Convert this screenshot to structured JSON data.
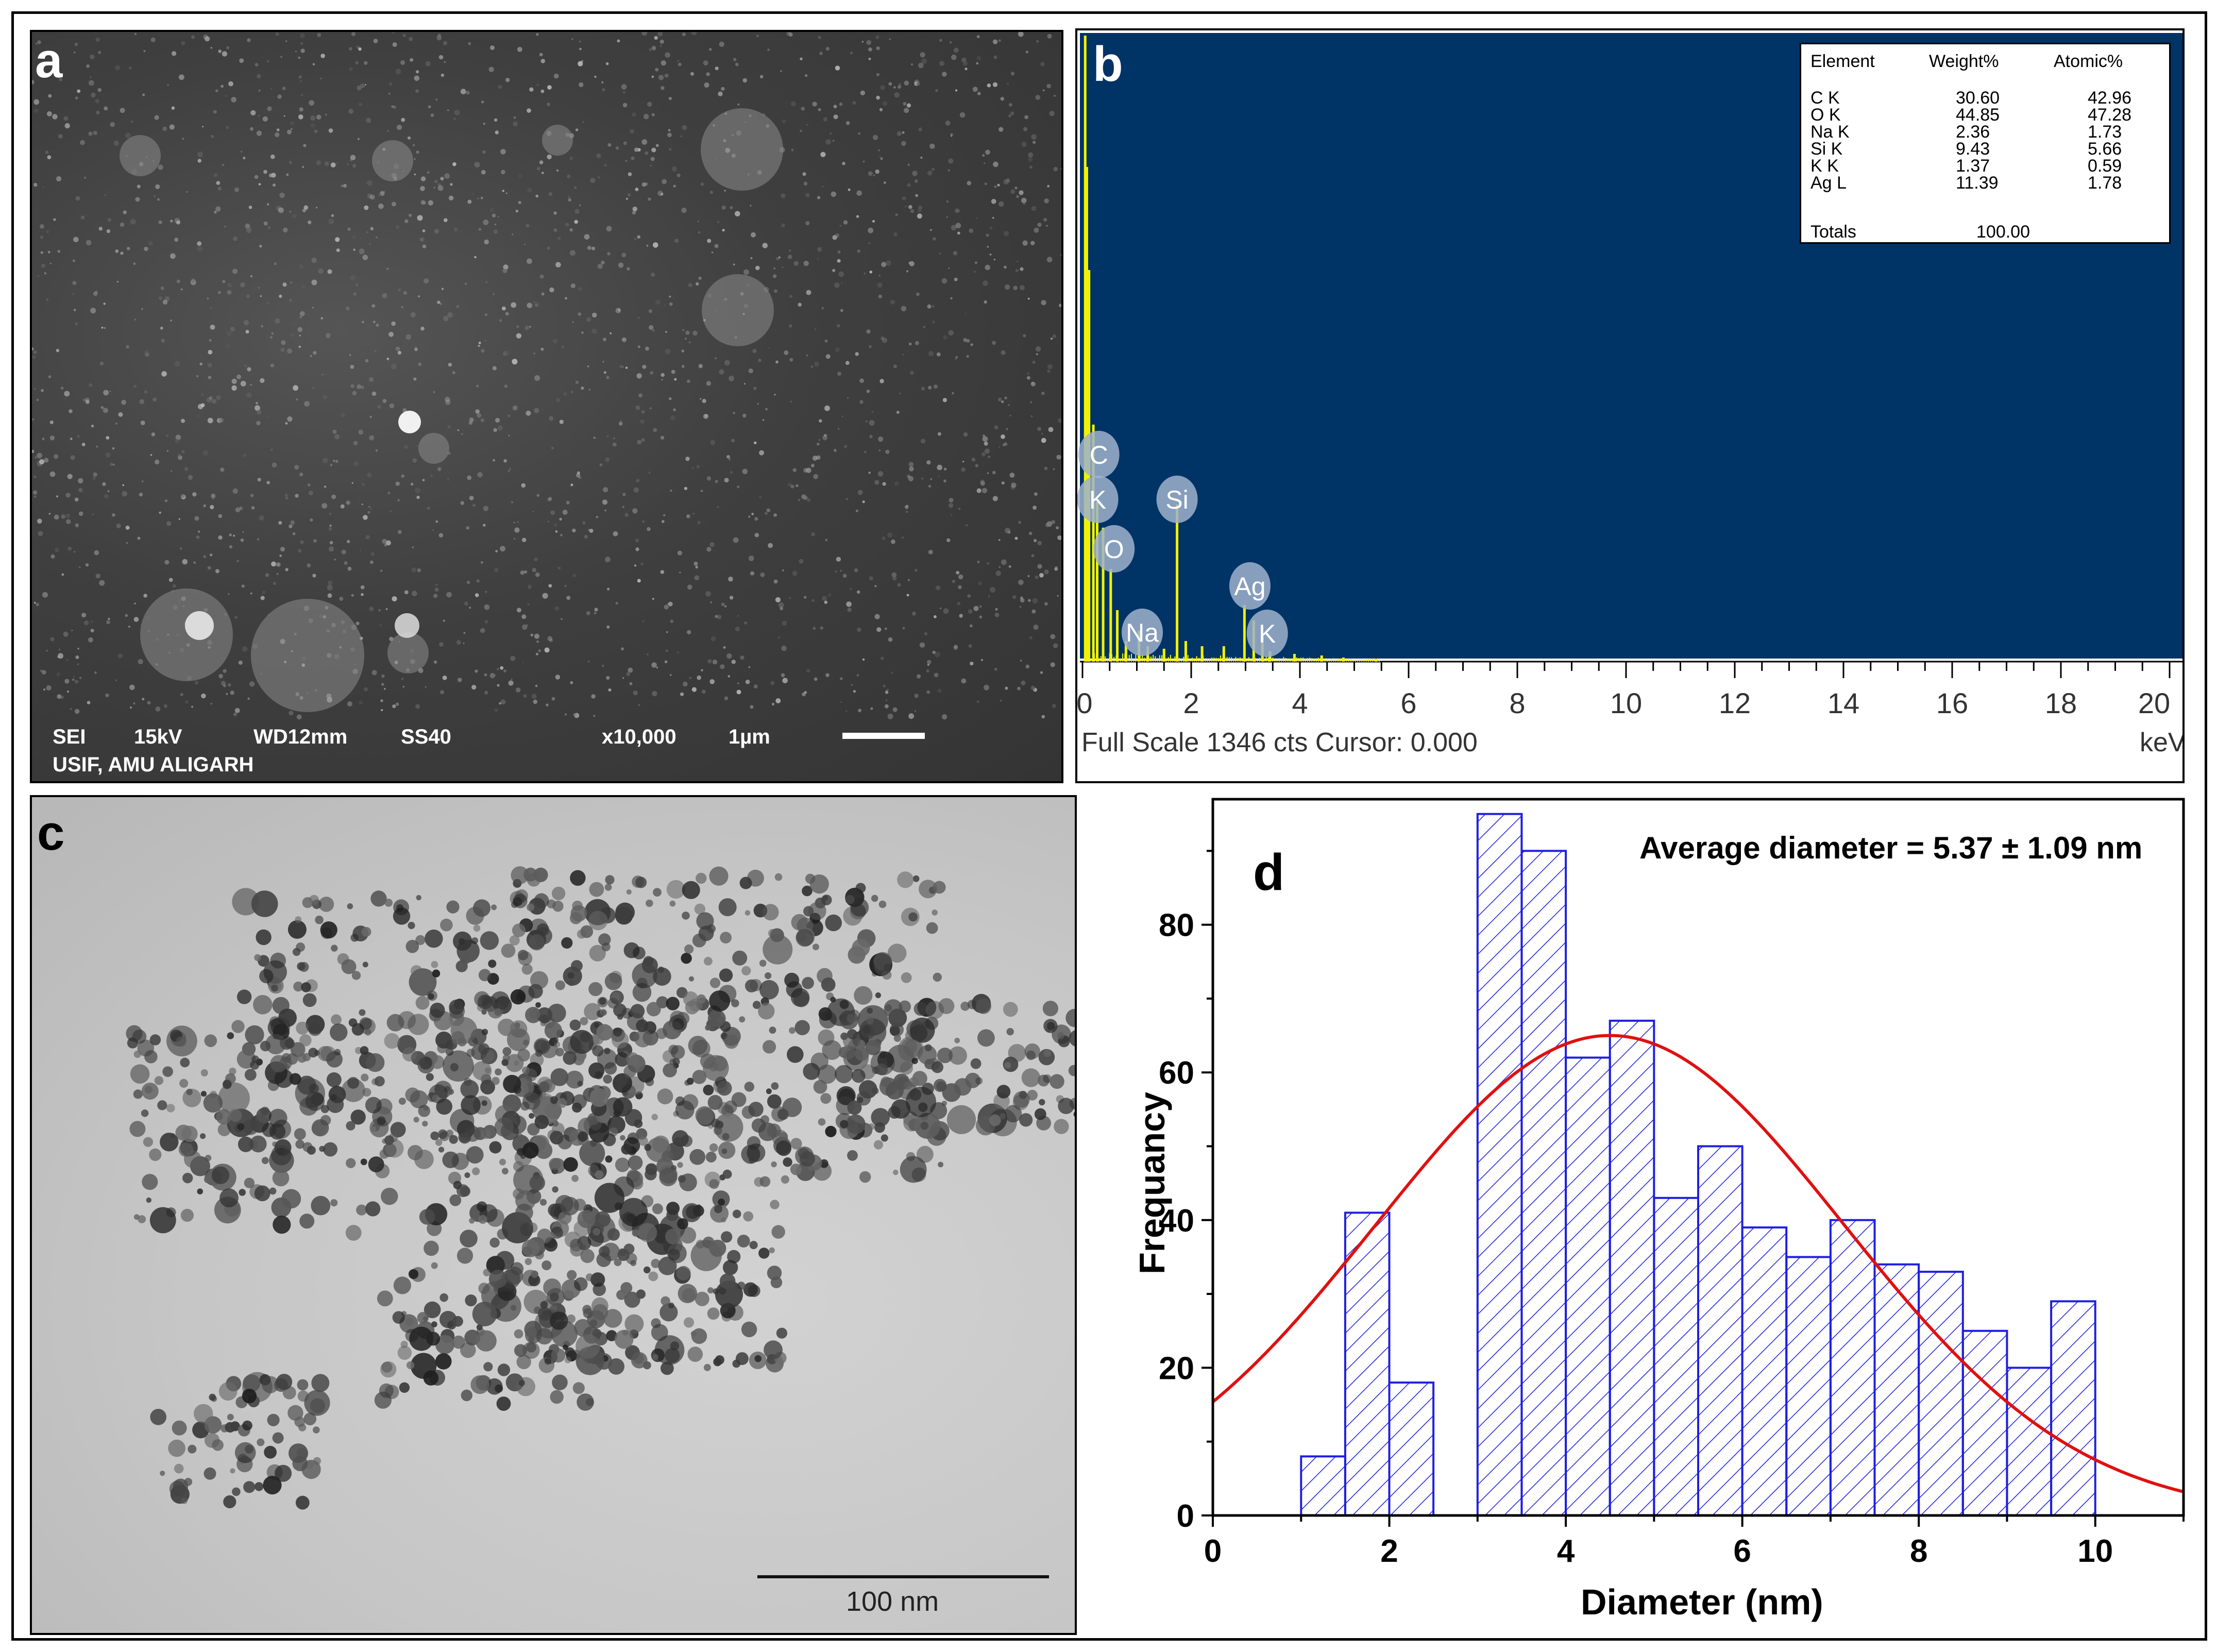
{
  "panel_labels": {
    "a": "a",
    "b": "b",
    "c": "c",
    "d": "d"
  },
  "sem": {
    "line1": [
      "SEI",
      "15kV",
      "WD12mm",
      "SS40",
      "x10,000",
      "1µm"
    ],
    "line2": "USIF, AMU ALIGARH"
  },
  "eds": {
    "header": [
      "Element",
      "Weight%",
      "Atomic%"
    ],
    "rows": [
      [
        "C K",
        "30.60",
        "42.96"
      ],
      [
        "O K",
        "44.85",
        "47.28"
      ],
      [
        "Na K",
        "2.36",
        "1.73"
      ],
      [
        "Si K",
        "9.43",
        "5.66"
      ],
      [
        "K K",
        "1.37",
        "0.59"
      ],
      [
        "Ag L",
        "11.39",
        "1.78"
      ]
    ],
    "totals": [
      "Totals",
      "100.00"
    ],
    "peak_labels": [
      "C",
      "K",
      "Si",
      "O",
      "Ag",
      "Na",
      "K"
    ],
    "x_ticks": [
      "0",
      "2",
      "4",
      "6",
      "8",
      "10",
      "12",
      "14",
      "16",
      "18",
      "20"
    ],
    "footer_left": "Full Scale 1346 cts Cursor: 0.000",
    "footer_unit": "keV",
    "colors": {
      "background": "#003366",
      "spectrum": "#f2f200",
      "peak_bubble": "#9fb3cc"
    }
  },
  "tem": {
    "scale_label": "100 nm"
  },
  "chart_data": {
    "type": "bar",
    "title": "Average diameter = 5.37 ± 1.09 nm",
    "xlabel": "Diameter (nm)",
    "ylabel": "Frequancy",
    "xlim": [
      0,
      11
    ],
    "ylim": [
      0,
      97
    ],
    "x_ticks": [
      0,
      2,
      4,
      6,
      8,
      10
    ],
    "y_ticks": [
      0,
      20,
      40,
      60,
      80
    ],
    "bins": [
      {
        "x0": 1.0,
        "x1": 1.5,
        "value": 8
      },
      {
        "x0": 1.5,
        "x1": 2.0,
        "value": 41
      },
      {
        "x0": 2.0,
        "x1": 2.5,
        "value": 18
      },
      {
        "x0": 3.0,
        "x1": 3.5,
        "value": 95
      },
      {
        "x0": 3.5,
        "x1": 4.0,
        "value": 90
      },
      {
        "x0": 4.0,
        "x1": 4.5,
        "value": 62
      },
      {
        "x0": 4.5,
        "x1": 5.0,
        "value": 67
      },
      {
        "x0": 5.0,
        "x1": 5.5,
        "value": 43
      },
      {
        "x0": 5.5,
        "x1": 6.0,
        "value": 50
      },
      {
        "x0": 6.0,
        "x1": 6.5,
        "value": 39
      },
      {
        "x0": 6.5,
        "x1": 7.0,
        "value": 35
      },
      {
        "x0": 7.0,
        "x1": 7.5,
        "value": 40
      },
      {
        "x0": 7.5,
        "x1": 8.0,
        "value": 34
      },
      {
        "x0": 8.0,
        "x1": 8.5,
        "value": 33
      },
      {
        "x0": 8.5,
        "x1": 9.0,
        "value": 25
      },
      {
        "x0": 9.0,
        "x1": 9.5,
        "value": 20
      },
      {
        "x0": 9.5,
        "x1": 10.0,
        "value": 29
      }
    ],
    "fit_curve": {
      "type": "gaussian",
      "amplitude": 65,
      "mean": 4.5,
      "sd": 2.65
    },
    "colors": {
      "bars": "#1f1fe0",
      "fit": "#e01010"
    }
  }
}
